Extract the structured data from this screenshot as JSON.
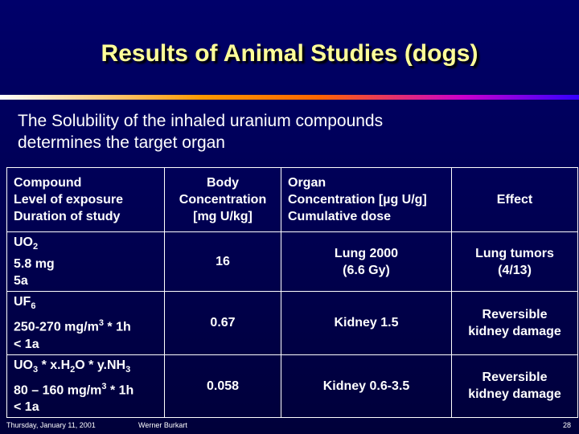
{
  "slide": {
    "title": "Results of Animal Studies (dogs)",
    "subtitle_line1": "The Solubility of the inhaled uranium compounds",
    "subtitle_line2": "determines the target organ",
    "colors": {
      "background": "#00006a",
      "title": "#ffff99",
      "text": "#ffffff"
    }
  },
  "table": {
    "headers": {
      "compound": [
        "Compound",
        "Level of exposure",
        "Duration of study"
      ],
      "body_concentration": [
        "Body",
        "Concentration",
        "[mg U/kg]"
      ],
      "organ_concentration": [
        "Organ",
        "Concentration [µg U/g]",
        "Cumulative dose"
      ],
      "effect": [
        "Effect"
      ]
    },
    "rows": [
      {
        "compound_main": "UO",
        "compound_sub": "2",
        "exposure": "5.8 mg",
        "duration": "5a",
        "body": "16",
        "organ": [
          "Lung 2000",
          "(6.6 Gy)"
        ],
        "effect": [
          "Lung tumors",
          "(4/13)"
        ]
      },
      {
        "compound_main": "UF",
        "compound_sub": "6",
        "exposure_pre": "250-270 mg/m",
        "exposure_sup": "3",
        "exposure_post": " * 1h",
        "duration": "< 1a",
        "body": "0.67",
        "organ": [
          "Kidney 1.5"
        ],
        "effect": [
          "Reversible",
          "kidney damage"
        ]
      },
      {
        "c1": "UO",
        "c1_sub": "3",
        "c2": " * x.H",
        "c2_sub": "2",
        "c3": "O * y.NH",
        "c3_sub": "3",
        "exposure_pre": "80 – 160 mg/m",
        "exposure_sup": "3",
        "exposure_post": " * 1h",
        "duration": "< 1a",
        "body": "0.058",
        "organ": [
          "Kidney 0.6-3.5"
        ],
        "effect": [
          "Reversible",
          "kidney damage"
        ]
      }
    ]
  },
  "footer": {
    "date": "Thursday, January 11, 2001",
    "author": "Werner Burkart",
    "page": "28"
  }
}
